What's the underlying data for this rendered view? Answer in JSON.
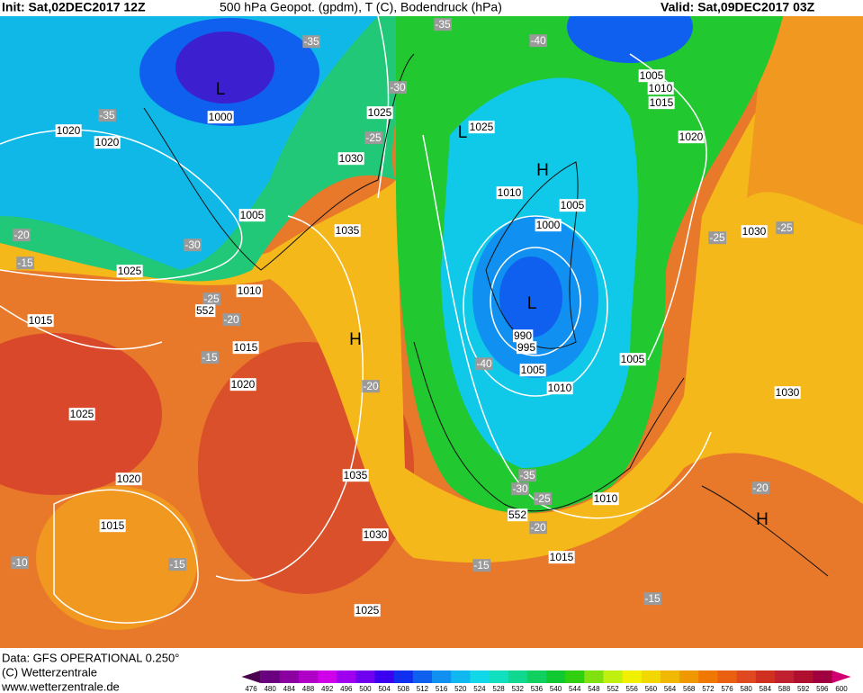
{
  "header": {
    "init": "Init: Sat,02DEC2017 12Z",
    "title": "500 hPa Geopot. (gpdm), T (C), Bodendruck (hPa)",
    "valid": "Valid: Sat,09DEC2017 03Z"
  },
  "footer": {
    "source": "Data: GFS OPERATIONAL 0.250°",
    "copyright": "(C) Wetterzentrale",
    "url": "www.wetterzentrale.de"
  },
  "legend": {
    "ticks": [
      476,
      480,
      484,
      488,
      492,
      496,
      500,
      504,
      508,
      512,
      516,
      520,
      524,
      528,
      532,
      536,
      540,
      544,
      548,
      552,
      556,
      560,
      564,
      568,
      572,
      576,
      580,
      584,
      588,
      592,
      596,
      600
    ],
    "colors": [
      "#4b0050",
      "#6a0080",
      "#8a00a0",
      "#b000c8",
      "#d000e8",
      "#a000f0",
      "#7000f0",
      "#3c00f0",
      "#1030f0",
      "#1060f0",
      "#1090f0",
      "#10b8f0",
      "#10d8e8",
      "#10e0c0",
      "#10d890",
      "#10d060",
      "#10c830",
      "#30d010",
      "#80e010",
      "#c0f010",
      "#f0f000",
      "#f0d800",
      "#f0b800",
      "#f09800",
      "#f07800",
      "#e86010",
      "#e04820",
      "#d03020",
      "#c02030",
      "#b01030",
      "#a00040",
      "#d00070"
    ]
  },
  "map": {
    "pressure_labels": [
      1000,
      1020,
      1020,
      1025,
      1025,
      1030,
      1005,
      1035,
      1025,
      1010,
      1015,
      1015,
      1020,
      1025,
      1020,
      1035,
      1015,
      1030,
      1025,
      1010,
      1005,
      1000,
      990,
      995,
      1005,
      1010,
      1005,
      1010,
      1015,
      1005,
      1010,
      1015,
      1020,
      1030,
      1030
    ],
    "temperature_labels": [
      -35,
      -30,
      -35,
      -25,
      -30,
      -20,
      -15,
      -25,
      -20,
      -15,
      -20,
      -35,
      -40,
      -40,
      -35,
      -30,
      -25,
      -20,
      -15,
      -10,
      -15,
      -15,
      -25,
      -25,
      -20
    ],
    "geopotential_labels": [
      552,
      552
    ],
    "centers": [
      "L",
      "L",
      "H",
      "L",
      "H",
      "H"
    ]
  }
}
